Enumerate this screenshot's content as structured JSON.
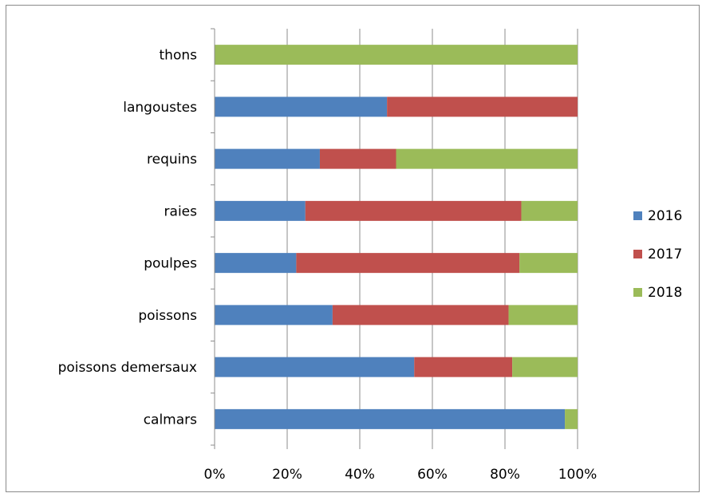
{
  "chart_data": {
    "type": "bar",
    "orientation": "horizontal",
    "stacked": "percent",
    "categories": [
      "thons",
      "langoustes",
      "requins",
      "raies",
      "poulpes",
      "poissons",
      "poissons demersaux",
      "calmars"
    ],
    "series": [
      {
        "name": "2016",
        "color": "#4f81bd",
        "values": [
          0,
          47.5,
          29,
          25,
          22.5,
          32.5,
          55,
          96.5
        ]
      },
      {
        "name": "2017",
        "color": "#c0504d",
        "values": [
          0,
          52.5,
          21,
          59.5,
          61.5,
          48.5,
          27,
          0
        ]
      },
      {
        "name": "2018",
        "color": "#9bbb59",
        "values": [
          100,
          0,
          50,
          15.5,
          16,
          19,
          18,
          3.5
        ]
      }
    ],
    "xlim": [
      0,
      100
    ],
    "xticks": [
      "0%",
      "20%",
      "40%",
      "60%",
      "80%",
      "100%"
    ],
    "grid": true,
    "legend_position": "right"
  }
}
